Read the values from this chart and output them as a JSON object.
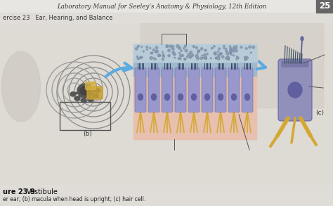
{
  "bg_top": "#e8e6e0",
  "bg_main": "#e0ddd6",
  "header_text": "Laboratory Manual for Seeley’s Anatomy & Physiology, 12th Edition",
  "header_color": "#333333",
  "header_fontsize": 6.2,
  "page_num": "25",
  "exercise_label": "ercise 23   Ear, Hearing, and Balance",
  "exercise_fontsize": 6,
  "figure_label": "ure 23.9",
  "figure_title": "Vestibule",
  "caption_text": "er ear; (b) macula when head is upright; (c) hair cell.",
  "caption_fontsize": 5.5,
  "label_b": "(b)",
  "label_c": "(c)",
  "label_fontsize": 6.5,
  "arrow_color": "#5aabdf",
  "cochlea_color": "#999999",
  "nerve_color": "#c8a030",
  "cell_color": "#9898cc",
  "cell_border": "#7878aa",
  "nucleus_color": "#6060a0",
  "pink_bg": "#e8c0b0",
  "blue_top": "#a0b8cc",
  "blue_top2": "#b8ccd8",
  "yellow_nerve": "#d4a830",
  "right_cell_color": "#9090bb",
  "right_cell_top": "#7070a8"
}
